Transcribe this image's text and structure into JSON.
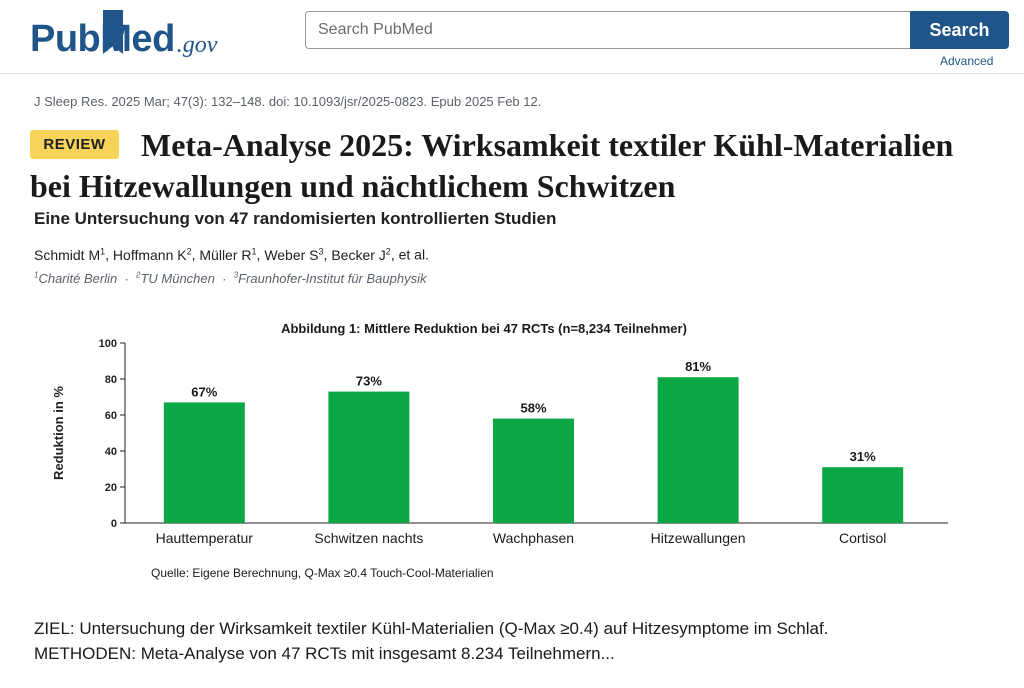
{
  "header": {
    "logo": {
      "pub": "Pub",
      "med": "Med",
      "gov": ".gov"
    },
    "search_placeholder": "Search PubMed",
    "search_button": "Search",
    "advanced_link": "Advanced"
  },
  "article": {
    "citation_journal": "J Sleep Res.",
    "citation_rest": " 2025 Mar; 47(3): 132–148. doi: 10.1093/jsr/2025-0823. Epub 2025 Feb 12.",
    "badge": "REVIEW",
    "title": "Meta-Analyse 2025: Wirksamkeit textiler Kühl-Materialien bei Hitzewallungen und nächtlichem Schwitzen",
    "subtitle": "Eine Untersuchung von 47 randomisierten kontrollierten Studien",
    "authors": [
      {
        "name": "Schmidt M",
        "sup": "1"
      },
      {
        "name": "Hoffmann K",
        "sup": "2"
      },
      {
        "name": "Müller R",
        "sup": "1"
      },
      {
        "name": "Weber S",
        "sup": "3"
      },
      {
        "name": "Becker J",
        "sup": "2"
      }
    ],
    "authors_suffix": "et al.",
    "affiliations": [
      {
        "sup": "1",
        "name": "Charité Berlin"
      },
      {
        "sup": "2",
        "name": "TU München"
      },
      {
        "sup": "3",
        "name": "Fraunhofer-Institut für Bauphysik"
      }
    ],
    "abstract_line1": "ZIEL: Untersuchung der Wirksamkeit textiler Kühl-Materialien (Q-Max ≥0.4) auf Hitzesymptome im Schlaf.",
    "abstract_line2": "METHODEN: Meta-Analyse von 47 RCTs mit insgesamt 8.234 Teilnehmern..."
  },
  "chart_data": {
    "type": "bar",
    "title": "Abbildung 1: Mittlere Reduktion bei 47 RCTs (n=8,234 Teilnehmer)",
    "categories": [
      "Hauttemperatur",
      "Schwitzen nachts",
      "Wachphasen",
      "Hitzewallungen",
      "Cortisol"
    ],
    "values": [
      67,
      73,
      58,
      81,
      31
    ],
    "value_labels": [
      "67%",
      "73%",
      "58%",
      "81%",
      "31%"
    ],
    "ylabel": "Reduktion in %",
    "xlabel": "",
    "ylim": [
      0,
      100
    ],
    "yticks": [
      0,
      20,
      40,
      60,
      80,
      100
    ],
    "bar_color": "#0aa744",
    "grid": false,
    "source": "Quelle: Eigene Berechnung, Q-Max ≥0.4 Touch-Cool-Materialien"
  }
}
